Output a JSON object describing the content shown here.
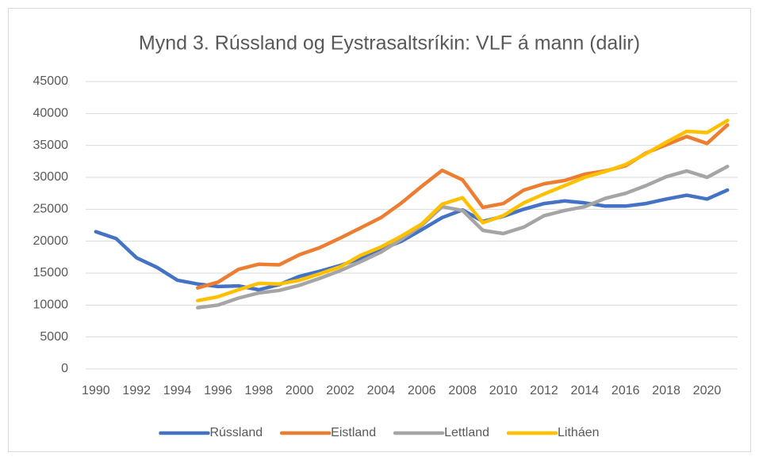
{
  "chart_data": {
    "type": "line",
    "title": "Mynd 3. Rússland og Eystrasaltsríkin: VLF á mann (dalir)",
    "categories": [
      "1990",
      null,
      "1992",
      null,
      "1994",
      null,
      "1996",
      null,
      "1998",
      null,
      "2000",
      null,
      "2002",
      null,
      "2004",
      null,
      "2006",
      null,
      "2008",
      null,
      "2010",
      null,
      "2012",
      null,
      "2014",
      null,
      "2016",
      null,
      "2018",
      null,
      "2020",
      null
    ],
    "series": [
      {
        "name": "Rússland",
        "color": "#4472c4",
        "values": [
          21500,
          20400,
          17400,
          15900,
          13900,
          13300,
          12900,
          13000,
          12400,
          13200,
          14500,
          15300,
          16200,
          17300,
          18700,
          20000,
          21800,
          23700,
          24900,
          23100,
          23900,
          25000,
          25900,
          26300,
          26000,
          25500,
          25500,
          25900,
          26600,
          27200,
          26600,
          28000
        ]
      },
      {
        "name": "Eistland",
        "color": "#ed7d31",
        "values": [
          null,
          null,
          null,
          null,
          null,
          12700,
          13600,
          15600,
          16400,
          16300,
          17900,
          19000,
          20500,
          22100,
          23700,
          26000,
          28600,
          31100,
          29600,
          25300,
          25900,
          28000,
          29000,
          29500,
          30500,
          31000,
          31800,
          33800,
          35100,
          36400,
          35300,
          38200
        ]
      },
      {
        "name": "Lettland",
        "color": "#a5a5a5",
        "values": [
          null,
          null,
          null,
          null,
          null,
          9600,
          10000,
          11100,
          11900,
          12300,
          13100,
          14200,
          15400,
          16800,
          18300,
          20300,
          22500,
          25400,
          24800,
          21700,
          21200,
          22200,
          24000,
          24800,
          25400,
          26700,
          27500,
          28700,
          30100,
          31000,
          30000,
          31700
        ]
      },
      {
        "name": "Litháen",
        "color": "#ffc000",
        "values": [
          null,
          null,
          null,
          null,
          null,
          10700,
          11300,
          12400,
          13400,
          13300,
          13900,
          14900,
          16000,
          17800,
          19100,
          20800,
          22700,
          25800,
          26800,
          22900,
          24000,
          26000,
          27400,
          28700,
          30000,
          30900,
          32000,
          33700,
          35500,
          37200,
          37000,
          38900
        ]
      }
    ],
    "ylim": [
      0,
      45000
    ],
    "yticks": [
      0,
      5000,
      10000,
      15000,
      20000,
      25000,
      30000,
      35000,
      40000,
      45000
    ],
    "grid": true,
    "legend": "bottom"
  }
}
